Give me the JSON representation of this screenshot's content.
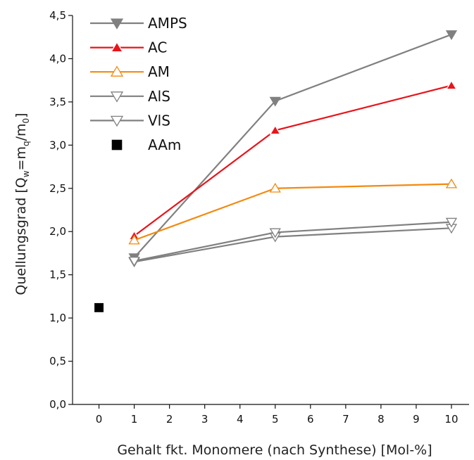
{
  "chart_data": {
    "type": "line",
    "xlabel": "Gehalt fkt. Monomere (nach Synthese) [Mol-%]",
    "ylabel": {
      "main": "Quellungsgrad [Q",
      "sub1": "w",
      "mid1": "=m",
      "sub2": "q",
      "mid2": "/m",
      "sub3": "0",
      "end": "]"
    },
    "xlim": [
      -0.75,
      10.5
    ],
    "ylim": [
      0,
      4.5
    ],
    "x_ticks": [
      0,
      1,
      2,
      3,
      4,
      5,
      6,
      7,
      8,
      9,
      10
    ],
    "x_tick_labels": [
      "0",
      "1",
      "2",
      "3",
      "4",
      "5",
      "6",
      "7",
      "8",
      "9",
      "10"
    ],
    "y_ticks": [
      0,
      0.5,
      1.0,
      1.5,
      2.0,
      2.5,
      3.0,
      3.5,
      4.0,
      4.5
    ],
    "y_tick_labels": [
      "0,0",
      "0,5",
      "1,0",
      "1,5",
      "2,0",
      "2,5",
      "3,0",
      "3,5",
      "4,0",
      "4,5"
    ],
    "legend_position": "top-left",
    "series": [
      {
        "name": "AMPS",
        "color": "#808080",
        "marker": "triangle-down-filled",
        "x": [
          1,
          5,
          10
        ],
        "y": [
          1.7,
          3.51,
          4.28
        ]
      },
      {
        "name": "AC",
        "color": "#e8141b",
        "marker": "triangle-up-filled-white-edge",
        "x": [
          1,
          5,
          10
        ],
        "y": [
          1.95,
          3.17,
          3.69
        ]
      },
      {
        "name": "AM",
        "color": "#f28a0f",
        "marker": "triangle-up-open",
        "x": [
          1,
          5,
          10
        ],
        "y": [
          1.9,
          2.5,
          2.55
        ]
      },
      {
        "name": "AlS",
        "color": "#808080",
        "marker": "triangle-down-open",
        "x": [
          1,
          5,
          10
        ],
        "y": [
          1.65,
          1.94,
          2.04
        ]
      },
      {
        "name": "VlS",
        "color": "#808080",
        "marker": "triangle-down-open",
        "x": [
          1,
          5,
          10
        ],
        "y": [
          1.66,
          1.99,
          2.11
        ]
      },
      {
        "name": "AAm",
        "color": "#000000",
        "marker": "square-filled",
        "x": [
          0
        ],
        "y": [
          1.12
        ]
      }
    ]
  }
}
